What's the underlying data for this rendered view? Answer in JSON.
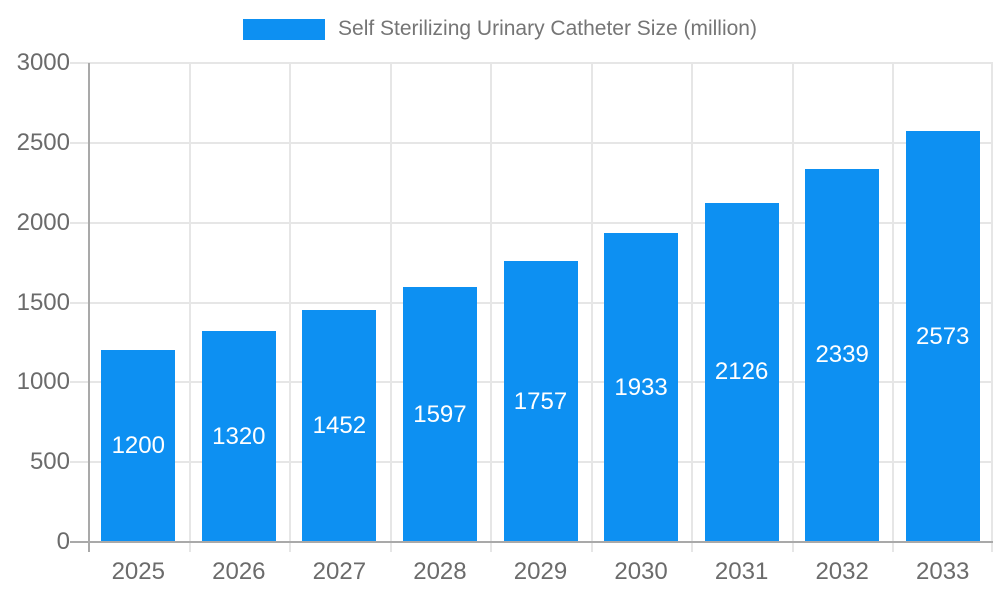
{
  "legend": {
    "label": "Self Sterilizing Urinary Catheter Size (million)"
  },
  "chart_data": {
    "type": "bar",
    "title": "Self Sterilizing Urinary Catheter Size (million)",
    "categories": [
      "2025",
      "2026",
      "2027",
      "2028",
      "2029",
      "2030",
      "2031",
      "2032",
      "2033"
    ],
    "values": [
      1200,
      1320,
      1452,
      1597,
      1757,
      1933,
      2126,
      2339,
      2573
    ],
    "xlabel": "",
    "ylabel": "",
    "ylim": [
      0,
      3000
    ],
    "y_ticks": [
      0,
      500,
      1000,
      1500,
      2000,
      2500,
      3000
    ],
    "grid": true,
    "legend_position": "top-center",
    "bar_color": "#0d90f2",
    "bar_label_color": "#ffffff",
    "axis_line_color": "#a9a9a9",
    "grid_line_color": "#e6e6e6",
    "tick_label_color": "#6b6b6b",
    "legend_text_color": "#757575"
  }
}
